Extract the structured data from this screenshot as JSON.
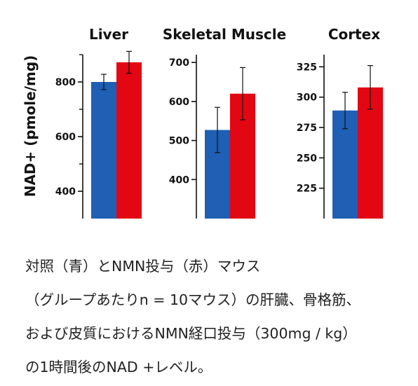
{
  "chart_data": {
    "type": "bar",
    "ylabel": "NAD+ (pmole/mg)",
    "panels": [
      {
        "title": "Liver",
        "ylim": [
          300,
          900
        ],
        "yticks": [
          400,
          600,
          800
        ],
        "minor_ticks": [
          500,
          700,
          900
        ],
        "series": [
          {
            "color": "#1f5fb4",
            "value": 800,
            "error": 28
          },
          {
            "color": "#e30613",
            "value": 872,
            "error": 40
          }
        ]
      },
      {
        "title": "Skeletal Muscle",
        "ylim": [
          300,
          720
        ],
        "yticks": [
          400,
          500,
          600,
          700
        ],
        "minor_ticks": [],
        "series": [
          {
            "color": "#1f5fb4",
            "value": 527,
            "error": 58
          },
          {
            "color": "#e30613",
            "value": 620,
            "error": 67
          }
        ]
      },
      {
        "title": "Cortex",
        "ylim": [
          200,
          335
        ],
        "yticks": [
          225,
          250,
          275,
          300,
          325
        ],
        "minor_ticks": [],
        "series": [
          {
            "color": "#1f5fb4",
            "value": 289,
            "error": 15
          },
          {
            "color": "#e30613",
            "value": 308,
            "error": 18
          }
        ]
      }
    ]
  },
  "caption": {
    "lines": [
      "対照（青）とNMN投与（赤）マウス",
      "（グループあたりn = 10マウス）の肝臓、骨格筋、",
      "および皮質におけるNMN経口投与（300mg / kg）",
      "の1時間後のNAD +レベル。"
    ]
  }
}
